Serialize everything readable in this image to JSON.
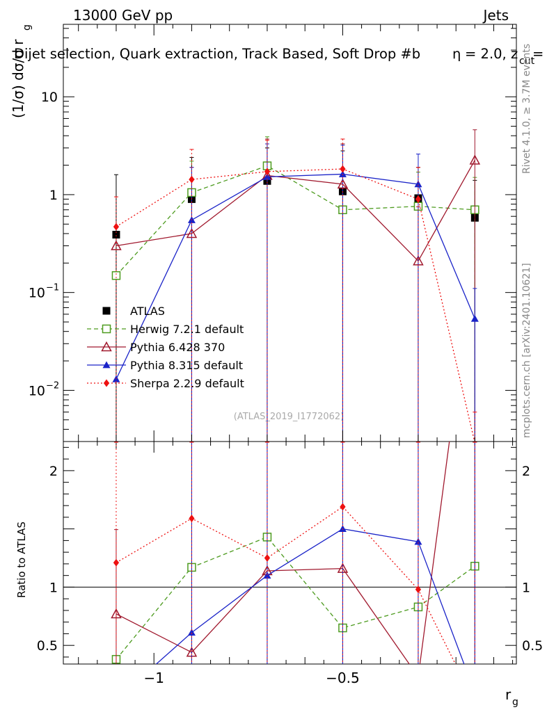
{
  "header": {
    "energy": "13000 GeV pp",
    "category": "Jets",
    "title": "Dijet selection, Quark extraction, Track Based, Soft Drop #b",
    "title_suffix": "= 2.0, z",
    "title_sub": "cut",
    "title_end": "=",
    "beta_symbol": "η",
    "side_text_rivet": "Rivet 4.1.0, ≥ 3.7M events",
    "side_text_mcplots": "mcplots.cern.ch [arXiv:2401.10621]",
    "watermark": "(ATLAS_2019_I1772062)"
  },
  "axes": {
    "ylabel_main": "(1/σ) dσ/d r",
    "ylabel_main_sub": "g",
    "ylabel_ratio": "Ratio to ATLAS",
    "xlabel": "r",
    "xlabel_sub": "g"
  },
  "chart_data": {
    "type": "line",
    "xlim": [
      -1.24,
      -0.04
    ],
    "main_ylim_log": [
      0.003,
      55
    ],
    "ratio_ylim": [
      0.34,
      2.25
    ],
    "x": [
      -1.1,
      -0.9,
      -0.7,
      -0.5,
      -0.3,
      -0.15
    ],
    "x_ticks": [
      {
        "value": -1,
        "label": "−1"
      },
      {
        "value": -0.5,
        "label": "−0.5"
      }
    ],
    "main_y_ticks": [
      {
        "value": 10,
        "label": "10",
        "exp": ""
      },
      {
        "value": 1,
        "label": "1",
        "exp": ""
      },
      {
        "value": 0.1,
        "label": "10",
        "exp": "−1"
      },
      {
        "value": 0.01,
        "label": "10",
        "exp": "−2"
      }
    ],
    "ratio_y_ticks": [
      {
        "value": 0.5,
        "label": "0.5"
      },
      {
        "value": 1,
        "label": "1"
      },
      {
        "value": 2,
        "label": "2"
      }
    ],
    "series": [
      {
        "name": "ATLAS",
        "color": "#000000",
        "marker": "square",
        "dash": "",
        "main": [
          0.39,
          0.9,
          1.38,
          1.08,
          0.92,
          0.58
        ],
        "main_lo": [
          0.0001,
          0.0001,
          0.0001,
          0.0001,
          0.0001,
          0.0001
        ],
        "main_hi": [
          1.6,
          2.4,
          3.0,
          2.8,
          1.9,
          1.4
        ],
        "ratio": [
          1.0,
          1.0,
          1.0,
          1.0,
          1.0,
          1.0
        ]
      },
      {
        "name": "Herwig 7.2.1 default",
        "color": "#4d9b1f",
        "marker": "open-square",
        "dash": "6,4",
        "main": [
          0.149,
          1.05,
          1.97,
          0.7,
          0.76,
          0.7
        ],
        "main_lo": [
          0.0001,
          0.0001,
          0.0001,
          0.0001,
          0.0001,
          0.0001
        ],
        "main_hi": [
          0.0001,
          2.2,
          3.9,
          3.3,
          1.7,
          1.5
        ],
        "ratio": [
          0.38,
          1.17,
          1.43,
          0.65,
          0.83,
          1.18
        ],
        "ratio_hi": [
          0.0,
          2.25,
          2.25,
          2.25,
          2.25,
          2.25
        ]
      },
      {
        "name": "Pythia 6.428 370",
        "color": "#a0182d",
        "marker": "open-triangle",
        "dash": "",
        "main": [
          0.3,
          0.4,
          1.57,
          1.28,
          0.21,
          2.25
        ],
        "main_lo": [
          0.0001,
          0.0001,
          0.0001,
          0.0001,
          0.0001,
          0.0001
        ],
        "main_hi": [
          0.0001,
          1.9,
          3.7,
          3.3,
          0.75,
          4.6
        ],
        "ratio": [
          0.77,
          0.44,
          1.14,
          1.16,
          0.23,
          3.9
        ],
        "ratio_hi": [
          1.5,
          2.25,
          2.25,
          2.25,
          2.25,
          2.25
        ]
      },
      {
        "name": "Pythia 8.315 default",
        "color": "#1a23c8",
        "marker": "filled-triangle",
        "dash": "",
        "main": [
          0.013,
          0.55,
          1.52,
          1.62,
          1.28,
          0.054
        ],
        "main_lo": [
          0.0001,
          0.0001,
          0.0001,
          0.0001,
          0.0001,
          0.0001
        ],
        "main_hi": [
          0.0001,
          1.9,
          3.3,
          3.2,
          2.6,
          0.11
        ],
        "ratio": [
          0.034,
          0.61,
          1.1,
          1.5,
          1.39,
          0.093
        ],
        "ratio_hi": [
          0.0,
          2.25,
          2.25,
          2.25,
          2.25,
          2.25
        ]
      },
      {
        "name": "Sherpa 2.2.9 default",
        "color": "#ee1111",
        "marker": "filled-diamond",
        "dash": "2,3",
        "main": [
          0.47,
          1.43,
          1.72,
          1.83,
          0.9,
          0.0029
        ],
        "main_lo": [
          0.0001,
          0.0001,
          0.0001,
          0.0001,
          0.0001,
          0.0001
        ],
        "main_hi": [
          0.95,
          2.9,
          3.6,
          3.7,
          1.9,
          0.006
        ],
        "ratio": [
          1.21,
          1.59,
          1.25,
          1.69,
          0.98,
          0.005
        ],
        "ratio_hi": [
          2.25,
          2.25,
          2.25,
          2.25,
          2.25,
          2.25
        ]
      }
    ]
  }
}
